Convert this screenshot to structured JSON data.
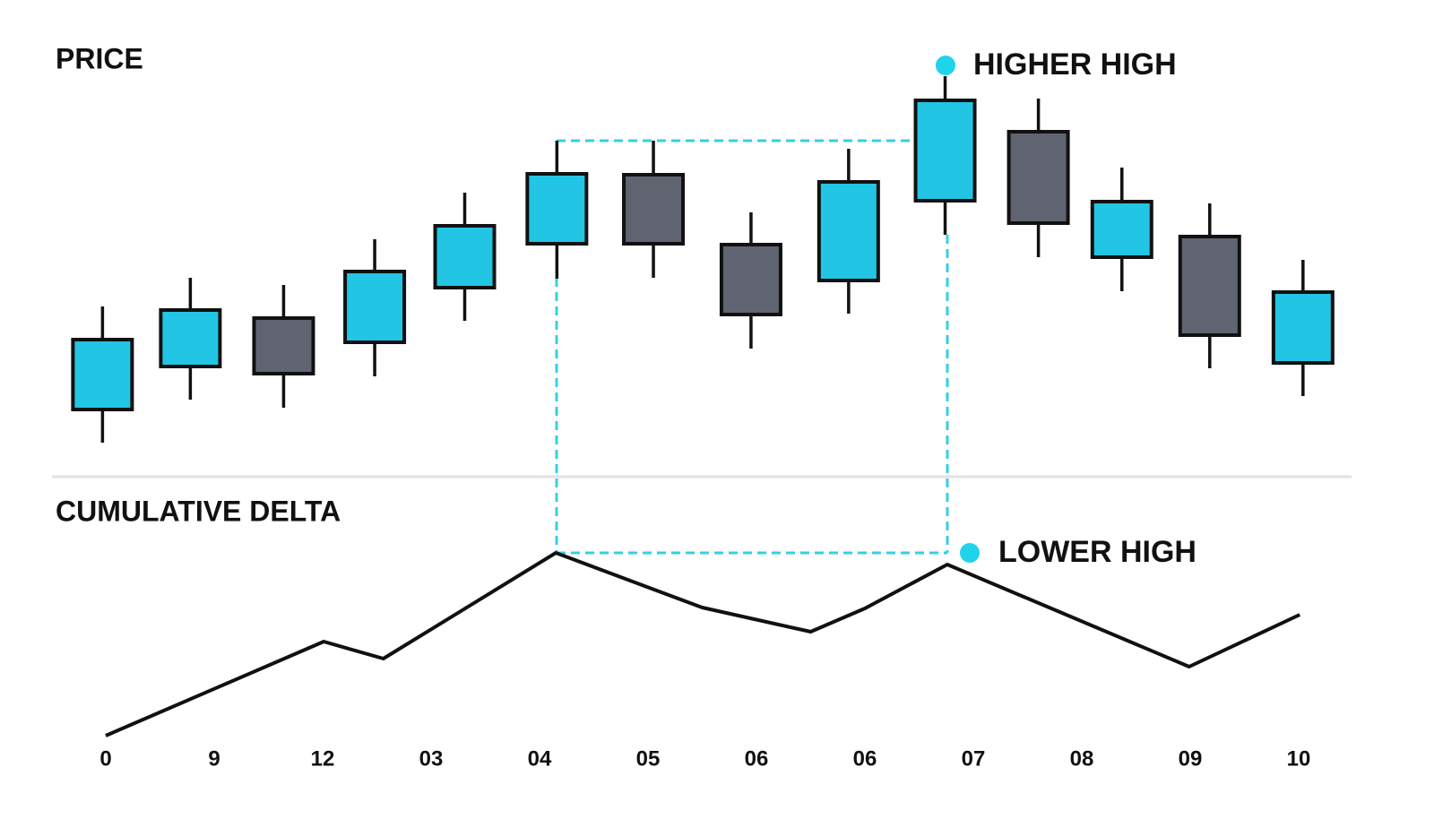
{
  "chart_data": [
    {
      "type": "candlestick",
      "title": "PRICE",
      "x": [
        -0.03,
        0.78,
        1.64,
        2.48,
        3.31,
        4.16,
        5.05,
        5.95,
        6.85,
        7.74,
        8.6,
        9.37,
        10.18,
        11.04
      ],
      "open": [
        8.6,
        18.2,
        29,
        23.6,
        35.8,
        45.6,
        61,
        45.4,
        37.4,
        55.2,
        70.6,
        42.6,
        47.2,
        19
      ],
      "high": [
        31.6,
        38,
        36.4,
        46.6,
        57,
        68.6,
        68.6,
        52.6,
        66.8,
        83,
        78,
        62.6,
        54.6,
        42
      ],
      "low": [
        1.2,
        10.8,
        9,
        16,
        28.4,
        37.8,
        38,
        22.2,
        30,
        47.6,
        42.6,
        35,
        17.8,
        11.6
      ],
      "close": [
        24.2,
        30.8,
        16.6,
        39.4,
        49.6,
        61.2,
        45.6,
        29.8,
        59.4,
        77.6,
        50.2,
        55,
        25.2,
        34.8
      ],
      "up_color": "#22c5e4",
      "down_color": "#5f6470",
      "xlim": [
        -0.5,
        11.5
      ],
      "ylim": [
        0,
        90
      ],
      "annotations": [
        {
          "text": "HIGHER HIGH"
        }
      ]
    },
    {
      "type": "line",
      "title": "CUMULATIVE DELTA",
      "x": [
        0,
        2.01,
        2.56,
        4.15,
        5.5,
        6.5,
        7,
        7.76,
        9.99,
        11.01
      ],
      "values": [
        4.5,
        57,
        47.5,
        106.5,
        76,
        62.5,
        75.5,
        100,
        43,
        72
      ],
      "color": "#111111",
      "xlim": [
        -0.5,
        11.5
      ],
      "ylim": [
        0,
        115
      ],
      "xticks": [
        0,
        {
          "value": 1,
          "label": "9"
        },
        {
          "value": 2,
          "label": "12"
        },
        {
          "value": 3,
          "label": "03"
        },
        {
          "value": 4,
          "label": "04"
        },
        {
          "value": 5,
          "label": "05"
        },
        {
          "value": 6,
          "label": "06"
        },
        {
          "value": 7,
          "label": "06"
        },
        {
          "value": 8,
          "label": "07"
        },
        {
          "value": 9,
          "label": "08"
        },
        {
          "value": 10,
          "label": "09"
        },
        {
          "value": 11,
          "label": "10"
        }
      ],
      "annotations": [
        {
          "text": "LOWER HIGH"
        }
      ]
    }
  ]
}
